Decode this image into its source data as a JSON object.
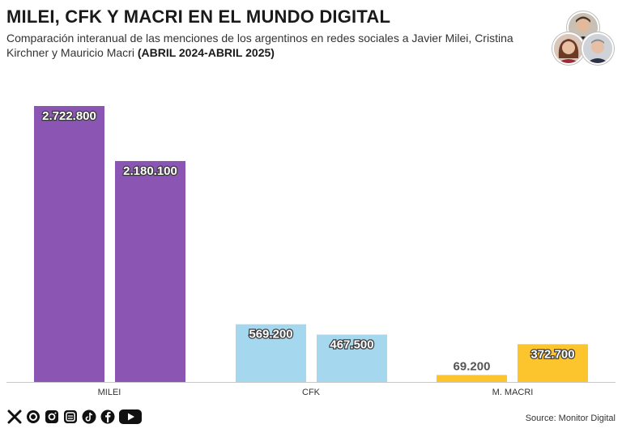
{
  "header": {
    "title": "MILEI, CFK Y MACRI EN EL MUNDO DIGITAL",
    "subtitle": "Comparación interanual de las menciones de los argentinos en redes sociales a Javier Milei, Cristina Kirchner y Mauricio Macri",
    "subtitle_bold": "(ABRIL 2024-ABRIL 2025)"
  },
  "footer": {
    "source": "Source: Monitor Digital",
    "social_icons": [
      "x-icon",
      "threads-icon",
      "instagram-icon",
      "newsletter-icon",
      "tiktok-icon",
      "facebook-icon",
      "youtube-icon"
    ]
  },
  "colors": {
    "MILEI": "#8b55b4",
    "CFK": "#a5d8ef",
    "M. MACRI": "#fcc52e"
  },
  "chart_data": {
    "type": "bar",
    "categories": [
      "MILEI",
      "CFK",
      "M. MACRI"
    ],
    "series": [
      {
        "values": [
          2722800,
          569200,
          69200
        ]
      },
      {
        "values": [
          2180100,
          467500,
          372700
        ]
      }
    ],
    "data_labels": [
      [
        "2.722.800",
        "569.200",
        "69.200"
      ],
      [
        "2.180.100",
        "467.500",
        "372.700"
      ]
    ],
    "ylim": [
      0,
      2722800
    ],
    "xlabel": "",
    "ylabel": "",
    "grid": false
  }
}
